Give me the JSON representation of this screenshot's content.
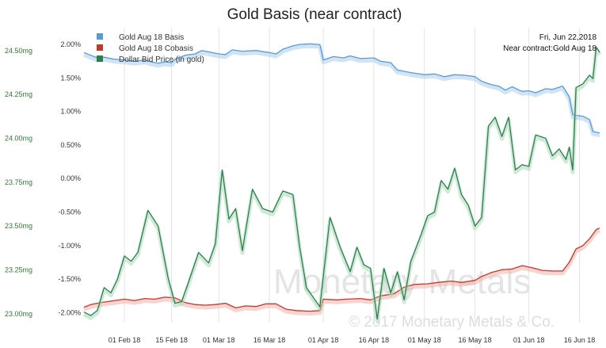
{
  "chart_data": {
    "type": "line",
    "title": "Gold Basis (near contract)",
    "info": [
      "Fri, Jun 22,2018",
      "Near contract:Gold Aug 18"
    ],
    "watermark": [
      "Monetary Metals",
      "© 2017 Monetary Metals & Co."
    ],
    "x_axis": {
      "type": "date",
      "range": [
        "2018-01-20",
        "2018-06-22"
      ],
      "ticks": [
        {
          "date": "2018-02-01",
          "label": "01 Feb 18"
        },
        {
          "date": "2018-02-15",
          "label": "15 Feb 18"
        },
        {
          "date": "2018-03-01",
          "label": "01 Mar 18"
        },
        {
          "date": "2018-03-16",
          "label": "16 Mar 18"
        },
        {
          "date": "2018-04-01",
          "label": "01 Apr 18"
        },
        {
          "date": "2018-04-16",
          "label": "16 Apr 18"
        },
        {
          "date": "2018-05-01",
          "label": "01 May 18"
        },
        {
          "date": "2018-05-16",
          "label": "16 May 18"
        },
        {
          "date": "2018-06-01",
          "label": "01 Jun 18"
        },
        {
          "date": "2018-06-16",
          "label": "16 Jun 18"
        }
      ]
    },
    "y_axis_left": {
      "unit": "mg",
      "range": [
        22.95,
        24.63
      ],
      "ticks": [
        {
          "value": 23.0,
          "label": "23.00mg"
        },
        {
          "value": 23.25,
          "label": "23.25mg"
        },
        {
          "value": 23.5,
          "label": "23.50mg"
        },
        {
          "value": 23.75,
          "label": "23.75mg"
        },
        {
          "value": 24.0,
          "label": "24.00mg"
        },
        {
          "value": 24.25,
          "label": "24.25mg"
        },
        {
          "value": 24.5,
          "label": "24.50mg"
        }
      ]
    },
    "y_axis_right": {
      "unit": "%",
      "range": [
        -2.15,
        2.25
      ],
      "ticks": [
        {
          "value": 2.0,
          "label": "2.00%"
        },
        {
          "value": 1.5,
          "label": "1.50%"
        },
        {
          "value": 1.0,
          "label": "1.00%"
        },
        {
          "value": 0.5,
          "label": "0.50%"
        },
        {
          "value": 0.0,
          "label": "0.00%"
        },
        {
          "value": -0.5,
          "label": "-0.50%"
        },
        {
          "value": -1.0,
          "label": "-1.00%"
        },
        {
          "value": -1.5,
          "label": "-1.50%"
        },
        {
          "value": -2.0,
          "label": "-2.00%"
        }
      ]
    },
    "legend_position": "top-left",
    "grid": {
      "vertical": true,
      "horizontal": false
    },
    "series": [
      {
        "name": "Gold Aug 18 Basis",
        "axis": "right",
        "color": "#5b9bd5",
        "shadow": "#a9cdee",
        "points": [
          [
            "2018-01-20",
            1.88
          ],
          [
            "2018-01-24",
            1.8
          ],
          [
            "2018-01-26",
            1.81
          ],
          [
            "2018-01-29",
            1.78
          ],
          [
            "2018-02-01",
            1.77
          ],
          [
            "2018-02-04",
            1.75
          ],
          [
            "2018-02-07",
            1.77
          ],
          [
            "2018-02-09",
            1.74
          ],
          [
            "2018-02-11",
            1.72
          ],
          [
            "2018-02-13",
            1.74
          ],
          [
            "2018-02-15",
            1.73
          ],
          [
            "2018-02-16",
            1.78
          ],
          [
            "2018-02-19",
            1.84
          ],
          [
            "2018-02-22",
            1.86
          ],
          [
            "2018-02-24",
            1.91
          ],
          [
            "2018-02-27",
            1.88
          ],
          [
            "2018-03-01",
            1.86
          ],
          [
            "2018-03-03",
            1.85
          ],
          [
            "2018-03-05",
            1.92
          ],
          [
            "2018-03-08",
            1.9
          ],
          [
            "2018-03-12",
            1.91
          ],
          [
            "2018-03-16",
            1.88
          ],
          [
            "2018-03-18",
            1.86
          ],
          [
            "2018-03-20",
            1.93
          ],
          [
            "2018-03-23",
            1.98
          ],
          [
            "2018-03-25",
            2.0
          ],
          [
            "2018-03-28",
            2.01
          ],
          [
            "2018-03-31",
            2.0
          ],
          [
            "2018-04-01",
            1.77
          ],
          [
            "2018-04-04",
            1.82
          ],
          [
            "2018-04-07",
            1.8
          ],
          [
            "2018-04-09",
            1.83
          ],
          [
            "2018-04-12",
            1.79
          ],
          [
            "2018-04-16",
            1.8
          ],
          [
            "2018-04-18",
            1.75
          ],
          [
            "2018-04-21",
            1.73
          ],
          [
            "2018-04-23",
            1.62
          ],
          [
            "2018-04-27",
            1.58
          ],
          [
            "2018-05-01",
            1.55
          ],
          [
            "2018-05-04",
            1.56
          ],
          [
            "2018-05-07",
            1.52
          ],
          [
            "2018-05-10",
            1.55
          ],
          [
            "2018-05-13",
            1.54
          ],
          [
            "2018-05-16",
            1.52
          ],
          [
            "2018-05-18",
            1.45
          ],
          [
            "2018-05-21",
            1.4
          ],
          [
            "2018-05-23",
            1.38
          ],
          [
            "2018-05-25",
            1.32
          ],
          [
            "2018-05-27",
            1.37
          ],
          [
            "2018-05-30",
            1.3
          ],
          [
            "2018-06-01",
            1.31
          ],
          [
            "2018-06-03",
            1.28
          ],
          [
            "2018-06-06",
            1.34
          ],
          [
            "2018-06-08",
            1.33
          ],
          [
            "2018-06-11",
            1.38
          ],
          [
            "2018-06-13",
            1.22
          ],
          [
            "2018-06-14",
            0.95
          ],
          [
            "2018-06-17",
            0.93
          ],
          [
            "2018-06-19",
            0.88
          ],
          [
            "2018-06-20",
            0.7
          ],
          [
            "2018-06-22",
            0.68
          ]
        ]
      },
      {
        "name": "Gold Aug 18 Cobasis",
        "axis": "right",
        "color": "#c0392b",
        "shadow": "#f1b0aa",
        "points": [
          [
            "2018-01-20",
            -1.92
          ],
          [
            "2018-01-22",
            -1.88
          ],
          [
            "2018-01-25",
            -1.85
          ],
          [
            "2018-01-28",
            -1.83
          ],
          [
            "2018-02-01",
            -1.8
          ],
          [
            "2018-02-04",
            -1.82
          ],
          [
            "2018-02-07",
            -1.79
          ],
          [
            "2018-02-10",
            -1.8
          ],
          [
            "2018-02-13",
            -1.77
          ],
          [
            "2018-02-16",
            -1.78
          ],
          [
            "2018-02-19",
            -1.85
          ],
          [
            "2018-02-22",
            -1.88
          ],
          [
            "2018-02-25",
            -1.89
          ],
          [
            "2018-02-28",
            -1.88
          ],
          [
            "2018-03-03",
            -1.86
          ],
          [
            "2018-03-06",
            -1.93
          ],
          [
            "2018-03-09",
            -1.9
          ],
          [
            "2018-03-12",
            -1.91
          ],
          [
            "2018-03-15",
            -1.87
          ],
          [
            "2018-03-18",
            -1.87
          ],
          [
            "2018-03-21",
            -1.95
          ],
          [
            "2018-03-24",
            -1.97
          ],
          [
            "2018-03-28",
            -1.98
          ],
          [
            "2018-03-31",
            -1.97
          ],
          [
            "2018-04-01",
            -1.8
          ],
          [
            "2018-04-05",
            -1.81
          ],
          [
            "2018-04-08",
            -1.8
          ],
          [
            "2018-04-12",
            -1.79
          ],
          [
            "2018-04-15",
            -1.81
          ],
          [
            "2018-04-18",
            -1.75
          ],
          [
            "2018-04-22",
            -1.72
          ],
          [
            "2018-04-25",
            -1.62
          ],
          [
            "2018-04-28",
            -1.58
          ],
          [
            "2018-05-02",
            -1.57
          ],
          [
            "2018-05-05",
            -1.55
          ],
          [
            "2018-05-09",
            -1.53
          ],
          [
            "2018-05-12",
            -1.55
          ],
          [
            "2018-05-16",
            -1.52
          ],
          [
            "2018-05-18",
            -1.46
          ],
          [
            "2018-05-21",
            -1.4
          ],
          [
            "2018-05-24",
            -1.36
          ],
          [
            "2018-05-27",
            -1.35
          ],
          [
            "2018-05-30",
            -1.3
          ],
          [
            "2018-06-02",
            -1.33
          ],
          [
            "2018-06-05",
            -1.37
          ],
          [
            "2018-06-08",
            -1.38
          ],
          [
            "2018-06-11",
            -1.38
          ],
          [
            "2018-06-13",
            -1.25
          ],
          [
            "2018-06-15",
            -1.05
          ],
          [
            "2018-06-17",
            -1.0
          ],
          [
            "2018-06-19",
            -0.9
          ],
          [
            "2018-06-21",
            -0.76
          ],
          [
            "2018-06-22",
            -0.74
          ]
        ]
      },
      {
        "name": "Dollar Bid Price (in gold)",
        "axis": "left",
        "color": "#2e7d4f",
        "shadow": "#a8d8b6",
        "points": [
          [
            "2018-01-20",
            23.01
          ],
          [
            "2018-01-22",
            22.99
          ],
          [
            "2018-01-24",
            23.02
          ],
          [
            "2018-01-26",
            23.15
          ],
          [
            "2018-01-28",
            23.12
          ],
          [
            "2018-01-30",
            23.2
          ],
          [
            "2018-02-01",
            23.33
          ],
          [
            "2018-02-03",
            23.3
          ],
          [
            "2018-02-05",
            23.35
          ],
          [
            "2018-02-08",
            23.59
          ],
          [
            "2018-02-11",
            23.5
          ],
          [
            "2018-02-14",
            23.2
          ],
          [
            "2018-02-16",
            23.06
          ],
          [
            "2018-02-18",
            23.07
          ],
          [
            "2018-02-20",
            23.18
          ],
          [
            "2018-02-23",
            23.35
          ],
          [
            "2018-02-26",
            23.29
          ],
          [
            "2018-02-28",
            23.4
          ],
          [
            "2018-03-02",
            23.82
          ],
          [
            "2018-03-04",
            23.54
          ],
          [
            "2018-03-06",
            23.6
          ],
          [
            "2018-03-08",
            23.36
          ],
          [
            "2018-03-11",
            23.71
          ],
          [
            "2018-03-14",
            23.6
          ],
          [
            "2018-03-17",
            23.58
          ],
          [
            "2018-03-20",
            23.7
          ],
          [
            "2018-03-23",
            23.68
          ],
          [
            "2018-03-25",
            23.38
          ],
          [
            "2018-03-27",
            23.15
          ],
          [
            "2018-03-31",
            23.04
          ],
          [
            "2018-04-03",
            23.55
          ],
          [
            "2018-04-06",
            23.38
          ],
          [
            "2018-04-09",
            23.24
          ],
          [
            "2018-04-11",
            23.38
          ],
          [
            "2018-04-13",
            23.28
          ],
          [
            "2018-04-15",
            23.26
          ],
          [
            "2018-04-17",
            22.97
          ],
          [
            "2018-04-19",
            23.26
          ],
          [
            "2018-04-21",
            23.12
          ],
          [
            "2018-04-23",
            23.24
          ],
          [
            "2018-04-25",
            23.08
          ],
          [
            "2018-04-27",
            23.3
          ],
          [
            "2018-04-30",
            23.45
          ],
          [
            "2018-05-02",
            23.56
          ],
          [
            "2018-05-04",
            23.58
          ],
          [
            "2018-05-06",
            23.76
          ],
          [
            "2018-05-08",
            23.71
          ],
          [
            "2018-05-10",
            23.83
          ],
          [
            "2018-05-12",
            23.68
          ],
          [
            "2018-05-14",
            23.62
          ],
          [
            "2018-05-16",
            23.5
          ],
          [
            "2018-05-18",
            23.55
          ],
          [
            "2018-05-20",
            24.07
          ],
          [
            "2018-05-22",
            24.12
          ],
          [
            "2018-05-24",
            24.01
          ],
          [
            "2018-05-26",
            24.12
          ],
          [
            "2018-05-28",
            23.82
          ],
          [
            "2018-05-30",
            23.85
          ],
          [
            "2018-06-01",
            23.84
          ],
          [
            "2018-06-03",
            24.02
          ],
          [
            "2018-06-06",
            24.0
          ],
          [
            "2018-06-08",
            23.9
          ],
          [
            "2018-06-10",
            23.94
          ],
          [
            "2018-06-12",
            23.88
          ],
          [
            "2018-06-13",
            23.95
          ],
          [
            "2018-06-14",
            23.82
          ],
          [
            "2018-06-15",
            24.29
          ],
          [
            "2018-06-17",
            24.31
          ],
          [
            "2018-06-19",
            24.36
          ],
          [
            "2018-06-20",
            24.34
          ],
          [
            "2018-06-21",
            24.52
          ],
          [
            "2018-06-22",
            24.49
          ]
        ]
      }
    ]
  }
}
